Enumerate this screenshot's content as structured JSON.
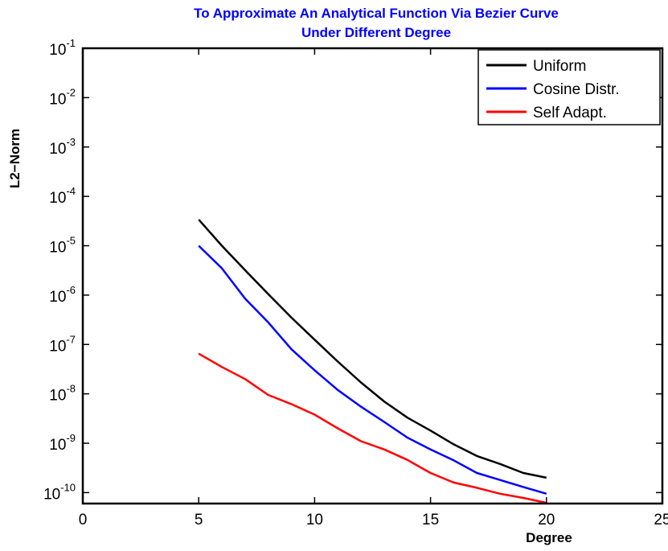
{
  "chart_data": {
    "type": "line",
    "title_lines": [
      "To Approximate An Analytical Function Via Bezier Curve",
      "Under Different Degree"
    ],
    "title_color": "#0000ff",
    "xlabel": "Degree",
    "ylabel": "L2−Norm",
    "xlim": [
      0,
      25
    ],
    "xticks": [
      0,
      5,
      10,
      15,
      20,
      25
    ],
    "yscale": "log",
    "ylim": [
      6e-11,
      0.1
    ],
    "ytick_exponents": [
      -10,
      -9,
      -8,
      -7,
      -6,
      -5,
      -4,
      -3,
      -2,
      -1
    ],
    "ytick_base": "10",
    "grid": false,
    "legend_position": "top-right",
    "x": [
      5,
      6,
      7,
      8,
      9,
      10,
      11,
      12,
      13,
      14,
      15,
      16,
      17,
      18,
      19,
      20
    ],
    "series": [
      {
        "name": "Uniform",
        "color": "#000000",
        "values": [
          3.4e-05,
          1e-05,
          3.2e-06,
          1.05e-06,
          3.5e-07,
          1.25e-07,
          4.5e-08,
          1.7e-08,
          7e-09,
          3.3e-09,
          1.8e-09,
          9.5e-10,
          5.5e-10,
          3.8e-10,
          2.5e-10,
          2e-10
        ]
      },
      {
        "name": "Cosine Distr.",
        "color": "#0000ff",
        "values": [
          1e-05,
          3.5e-06,
          8.5e-07,
          2.8e-07,
          8e-08,
          3e-08,
          1.2e-08,
          5.5e-09,
          2.7e-09,
          1.3e-09,
          7.5e-10,
          4.5e-10,
          2.5e-10,
          1.8e-10,
          1.3e-10,
          9.5e-11
        ]
      },
      {
        "name": "Self Adapt.",
        "color": "#ff0000",
        "values": [
          6.5e-08,
          3.5e-08,
          2e-08,
          9.5e-09,
          6.2e-09,
          3.8e-09,
          2e-09,
          1.1e-09,
          7.5e-10,
          4.6e-10,
          2.5e-10,
          1.6e-10,
          1.25e-10,
          9.5e-11,
          7.8e-11,
          6.2e-11
        ]
      }
    ]
  }
}
